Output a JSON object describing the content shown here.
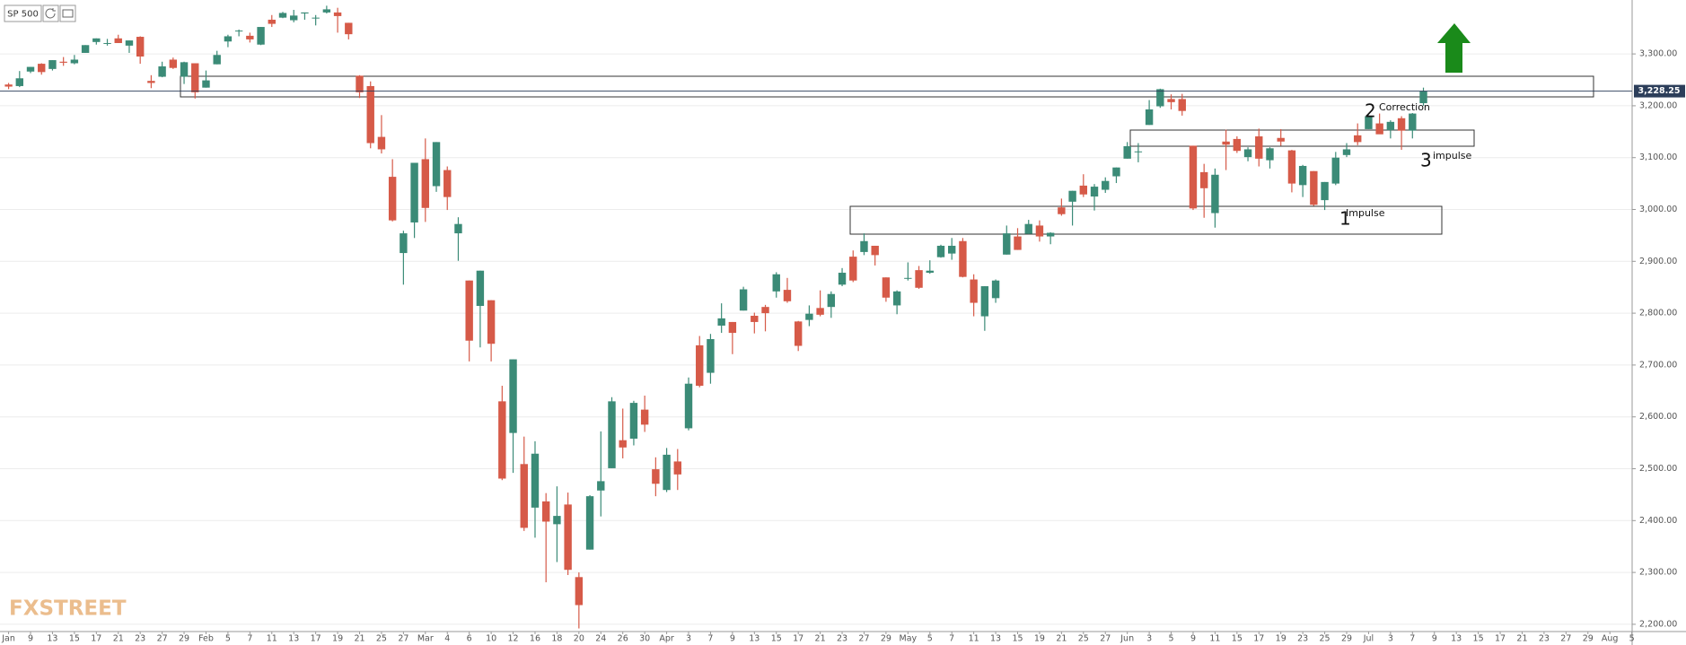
{
  "header": {
    "symbol": "SP 500"
  },
  "watermark": "FXSTREET",
  "chart_data": {
    "type": "candlestick",
    "categories": [
      "Jan",
      null,
      "9",
      null,
      "13",
      null,
      "15",
      null,
      "17",
      null,
      "21",
      null,
      "23",
      null,
      "27",
      null,
      "29",
      null,
      "Feb",
      null,
      "5",
      null,
      "7",
      null,
      "11",
      null,
      "13",
      null,
      "17",
      null,
      "19",
      null,
      "21",
      null,
      "25",
      null,
      "27",
      null,
      "Mar",
      null,
      "4",
      null,
      "6",
      null,
      "10",
      null,
      "12",
      null,
      "16",
      null,
      "18",
      null,
      "20",
      null,
      "24",
      null,
      "26",
      null,
      "30",
      null,
      "Apr",
      null,
      "3",
      null,
      "7",
      null,
      "9",
      null,
      "13",
      null,
      "15",
      null,
      "17",
      null,
      "21",
      null,
      "23",
      null,
      "27",
      null,
      "29",
      null,
      "May",
      null,
      "5",
      null,
      "7",
      null,
      "11",
      null,
      "13",
      null,
      "15",
      null,
      "19",
      null,
      "21",
      null,
      "25",
      null,
      "27",
      null,
      "Jun",
      null,
      "3",
      null,
      "5",
      null,
      "9",
      null,
      "11",
      null,
      "15",
      null,
      "17",
      null,
      "19",
      null,
      "23",
      null,
      "25",
      null,
      "29",
      null,
      "Jul",
      null,
      "3",
      null,
      "7",
      null,
      "9",
      null,
      "13",
      null,
      "15",
      null,
      "17",
      null,
      "21",
      null,
      "23",
      null,
      "27",
      null,
      "29",
      null,
      "Aug",
      null,
      "5"
    ],
    "series": {
      "open": [
        3241,
        3238,
        3266,
        3281,
        3271,
        3285,
        3282,
        3302,
        3323,
        3321,
        3330,
        3316,
        3333,
        3248,
        3256,
        3289,
        3256,
        3282,
        3235,
        3280,
        3324,
        3344,
        3335,
        3318,
        3366,
        3370,
        3365,
        3378,
        3370,
        3380,
        3380,
        3360,
        3258,
        3238,
        3140,
        3063,
        2916,
        2975,
        3097,
        3045,
        3076,
        2954,
        2863,
        2814,
        2825,
        2630,
        2569,
        2509,
        2425,
        2437,
        2393,
        2431,
        2291,
        2344,
        2458,
        2501,
        2555,
        2558,
        2614,
        2499,
        2459,
        2514,
        2578,
        2738,
        2685,
        2776,
        2783,
        2805,
        2795,
        2812,
        2842,
        2845,
        2784,
        2787,
        2810,
        2812,
        2855,
        2909,
        2918,
        2930,
        2869,
        2815,
        2868,
        2883,
        2878,
        2908,
        2915,
        2939,
        2865,
        2794,
        2829,
        2913,
        2948,
        2953,
        2969,
        2948,
        3004,
        3015,
        3046,
        3025,
        3038,
        3064,
        3098,
        3111,
        3163,
        3199,
        3213,
        3213,
        3123,
        3072,
        2993,
        3131,
        3136,
        3101,
        3141,
        3095,
        3138,
        3114,
        3047,
        3074,
        3018,
        3050,
        3105,
        3143,
        3155,
        3166,
        3153,
        3176,
        3152,
        3205,
        null,
        null,
        null,
        null,
        null,
        null,
        null,
        null,
        null,
        null,
        null,
        null,
        null,
        null,
        null,
        null,
        null,
        null,
        null
      ],
      "high": [
        3244,
        3267,
        3275,
        3282,
        3288,
        3294,
        3298,
        3317,
        3330,
        3329,
        3337,
        3326,
        3334,
        3259,
        3285,
        3293,
        3285,
        3282,
        3268,
        3306,
        3337,
        3347,
        3341,
        3352,
        3375,
        3381,
        3385,
        3380,
        3375,
        3393,
        3389,
        3360,
        3259,
        3247,
        3182,
        3097,
        2959,
        3090,
        3137,
        3130,
        3083,
        2985,
        2863,
        2882,
        2825,
        2660,
        2711,
        2562,
        2553,
        2453,
        2466,
        2454,
        2300,
        2449,
        2572,
        2638,
        2616,
        2631,
        2641,
        2522,
        2540,
        2538,
        2676,
        2756,
        2760,
        2819,
        2783,
        2851,
        2801,
        2816,
        2879,
        2868,
        2785,
        2815,
        2844,
        2842,
        2887,
        2921,
        2954,
        2930,
        2869,
        2844,
        2898,
        2891,
        2902,
        2932,
        2945,
        2945,
        2875,
        2852,
        2865,
        2969,
        2964,
        2980,
        2979,
        2956,
        3021,
        3036,
        3068,
        3049,
        3062,
        3081,
        3130,
        3128,
        3211,
        3233,
        3222,
        3223,
        3123,
        3088,
        3079,
        3154,
        3141,
        3120,
        3156,
        3120,
        3155,
        3115,
        3086,
        3074,
        3053,
        3111,
        3128,
        3166,
        3182,
        3185,
        3172,
        3180,
        3186,
        3235,
        null,
        null,
        null,
        null,
        null,
        null,
        null,
        null,
        null,
        null,
        null,
        null,
        null,
        null,
        null,
        null,
        null,
        null,
        null
      ],
      "low": [
        3232,
        3236,
        3263,
        3260,
        3268,
        3277,
        3280,
        3302,
        3318,
        3316,
        3321,
        3302,
        3281,
        3234,
        3255,
        3271,
        3242,
        3214,
        3235,
        3280,
        3313,
        3334,
        3322,
        3317,
        3352,
        3369,
        3361,
        3366,
        3355,
        3378,
        3341,
        3328,
        3215,
        3118,
        3108,
        2977,
        2855,
        2945,
        2976,
        3034,
        2999,
        2901,
        2707,
        2734,
        2707,
        2478,
        2492,
        2380,
        2367,
        2281,
        2320,
        2295,
        2192,
        2344,
        2408,
        2501,
        2520,
        2545,
        2571,
        2447,
        2455,
        2459,
        2574,
        2657,
        2664,
        2762,
        2721,
        2805,
        2761,
        2765,
        2830,
        2820,
        2727,
        2775,
        2794,
        2791,
        2852,
        2860,
        2912,
        2892,
        2822,
        2798,
        2863,
        2847,
        2876,
        2907,
        2903,
        2869,
        2794,
        2766,
        2820,
        2913,
        2922,
        2953,
        2938,
        2933,
        2988,
        2969,
        3024,
        2998,
        3032,
        3051,
        3098,
        3091,
        3163,
        3196,
        3193,
        3181,
        2999,
        2984,
        2965,
        3076,
        3109,
        3093,
        3083,
        3079,
        3123,
        3033,
        3024,
        3007,
        2999,
        3047,
        3101,
        3124,
        3155,
        3146,
        3137,
        3115,
        3137,
        3200,
        null,
        null,
        null,
        null,
        null,
        null,
        null,
        null,
        null,
        null,
        null,
        null,
        null,
        null,
        null,
        null,
        null,
        null,
        null
      ],
      "close": [
        3237,
        3253,
        3275,
        3265,
        3288,
        3283,
        3289,
        3317,
        3330,
        3321,
        3321,
        3326,
        3295,
        3244,
        3276,
        3273,
        3284,
        3226,
        3249,
        3298,
        3334,
        3345,
        3328,
        3352,
        3358,
        3379,
        3374,
        3380,
        3370,
        3386,
        3373,
        3338,
        3226,
        3128,
        3116,
        2979,
        2954,
        3090,
        3003,
        3130,
        3024,
        2972,
        2747,
        2882,
        2741,
        2481,
        2711,
        2386,
        2529,
        2398,
        2409,
        2305,
        2237,
        2447,
        2476,
        2630,
        2541,
        2627,
        2585,
        2471,
        2527,
        2489,
        2664,
        2660,
        2750,
        2790,
        2762,
        2846,
        2783,
        2800,
        2875,
        2823,
        2737,
        2799,
        2797,
        2837,
        2878,
        2863,
        2939,
        2912,
        2830,
        2842,
        2868,
        2849,
        2882,
        2930,
        2930,
        2870,
        2820,
        2852,
        2863,
        2954,
        2922,
        2972,
        2948,
        2955,
        2991,
        3036,
        3029,
        3044,
        3055,
        3081,
        3122,
        3112,
        3193,
        3232,
        3207,
        3190,
        3002,
        3041,
        3067,
        3125,
        3113,
        3116,
        3098,
        3118,
        3131,
        3050,
        3084,
        3009,
        3053,
        3100,
        3116,
        3130,
        3180,
        3145,
        3169,
        3152,
        3185,
        3228.25,
        null,
        null,
        null,
        null,
        null,
        null,
        null,
        null,
        null,
        null,
        null,
        null,
        null,
        null,
        null,
        null,
        null,
        null,
        null
      ]
    },
    "up_color": "#3b8b77",
    "down_color": "#d65a48",
    "ylim": [
      2186,
      3404
    ],
    "yticks": [
      {
        "value": 2200,
        "label": "2,200.00"
      },
      {
        "value": 2300,
        "label": "2,300.00"
      },
      {
        "value": 2400,
        "label": "2,400.00"
      },
      {
        "value": 2500,
        "label": "2,500.00"
      },
      {
        "value": 2600,
        "label": "2,600.00"
      },
      {
        "value": 2700,
        "label": "2,700.00"
      },
      {
        "value": 2800,
        "label": "2,800.00"
      },
      {
        "value": 2900,
        "label": "2,900.00"
      },
      {
        "value": 3000,
        "label": "3,000.00"
      },
      {
        "value": 3100,
        "label": "3,100.00"
      },
      {
        "value": 3200,
        "label": "3,200.00"
      },
      {
        "value": 3300,
        "label": "3,300.00"
      }
    ],
    "grid": true,
    "price_marker": {
      "value": 3228.25,
      "label": "3,228.25"
    },
    "annotations": [
      "1",
      "Impulse",
      "2",
      "Correction",
      "3",
      "impulse"
    ]
  }
}
